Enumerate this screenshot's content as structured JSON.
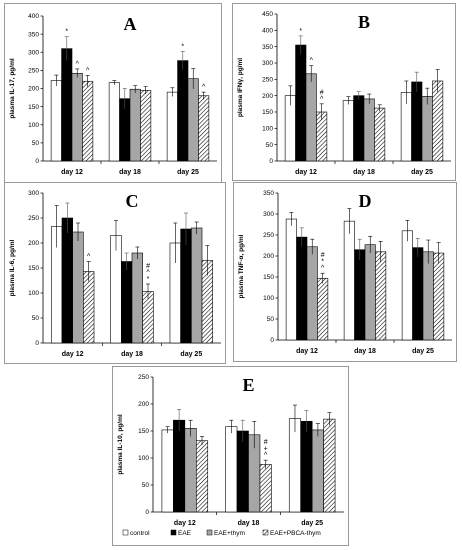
{
  "colors": {
    "control": "#ffffff",
    "EAE": "#000000",
    "EAE+thym": "#a6a6a6",
    "EAE+PBCA-thym": "hatched"
  },
  "legend": {
    "items": [
      {
        "label": "control",
        "key": "control"
      },
      {
        "label": "EAE",
        "key": "EAE"
      },
      {
        "label": "EAE+thym",
        "key": "EAE+thym"
      },
      {
        "label": "EAE+PBCA-thym",
        "key": "EAE+PBCA-thym"
      }
    ]
  },
  "chart_data": [
    {
      "id": "A",
      "panel_label": "A",
      "type": "bar",
      "ylabel": "plasma IL-17, pg/ml",
      "ylim": [
        0,
        400
      ],
      "yticks": [
        0,
        50,
        100,
        150,
        200,
        250,
        300,
        350,
        400
      ],
      "categories": [
        "day 12",
        "day 18",
        "day 25"
      ],
      "series": [
        {
          "name": "control",
          "values": [
            222,
            216,
            190
          ],
          "errors": [
            15,
            6,
            12
          ]
        },
        {
          "name": "EAE",
          "values": [
            310,
            172,
            277
          ],
          "errors": [
            33,
            28,
            25
          ]
        },
        {
          "name": "EAE+thym",
          "values": [
            242,
            198,
            227
          ],
          "errors": [
            12,
            10,
            28
          ]
        },
        {
          "name": "EAE+PBCA-thym",
          "values": [
            220,
            195,
            180
          ],
          "errors": [
            16,
            10,
            10
          ]
        }
      ],
      "annotations": [
        [
          "",
          "*",
          "^",
          "^"
        ],
        [
          "",
          "",
          "",
          ""
        ],
        [
          "",
          "*",
          "",
          "^"
        ]
      ]
    },
    {
      "id": "B",
      "panel_label": "B",
      "type": "bar",
      "ylabel": "plasma IFNγ, pg/ml",
      "ylim": [
        0,
        450
      ],
      "yticks": [
        0,
        50,
        100,
        150,
        200,
        250,
        300,
        350,
        400,
        450
      ],
      "categories": [
        "day 12",
        "day 18",
        "day 25"
      ],
      "series": [
        {
          "name": "control",
          "values": [
            200,
            185,
            210
          ],
          "errors": [
            30,
            12,
            35
          ]
        },
        {
          "name": "EAE",
          "values": [
            355,
            200,
            242
          ],
          "errors": [
            28,
            12,
            30
          ]
        },
        {
          "name": "EAE+thym",
          "values": [
            267,
            190,
            198
          ],
          "errors": [
            25,
            15,
            25
          ]
        },
        {
          "name": "EAE+PBCA-thym",
          "values": [
            150,
            162,
            245
          ],
          "errors": [
            25,
            10,
            35
          ]
        }
      ],
      "annotations": [
        [
          "",
          "*",
          "^",
          "# ^"
        ],
        [
          "",
          "",
          "",
          ""
        ],
        [
          "",
          "",
          "",
          ""
        ]
      ]
    },
    {
      "id": "C",
      "panel_label": "C",
      "type": "bar",
      "ylabel": "plasma IL-6, pg/ml",
      "ylim": [
        0,
        300
      ],
      "yticks": [
        0,
        50,
        100,
        150,
        200,
        250,
        300
      ],
      "categories": [
        "day 12",
        "day 18",
        "day 25"
      ],
      "series": [
        {
          "name": "control",
          "values": [
            233,
            215,
            200
          ],
          "errors": [
            42,
            30,
            40
          ]
        },
        {
          "name": "EAE",
          "values": [
            250,
            163,
            228
          ],
          "errors": [
            30,
            17,
            32
          ]
        },
        {
          "name": "EAE+thym",
          "values": [
            222,
            180,
            230
          ],
          "errors": [
            18,
            12,
            12
          ]
        },
        {
          "name": "EAE+PBCA-thym",
          "values": [
            143,
            103,
            165
          ],
          "errors": [
            20,
            15,
            30
          ]
        }
      ],
      "annotations": [
        [
          "",
          "",
          "",
          "^"
        ],
        [
          "",
          "",
          "",
          "# ^ *"
        ],
        [
          "",
          "",
          "",
          ""
        ]
      ]
    },
    {
      "id": "D",
      "panel_label": "D",
      "type": "bar",
      "ylabel": "plasma TNF-α, pg/ml",
      "ylim": [
        0,
        350
      ],
      "yticks": [
        0,
        50,
        100,
        150,
        200,
        250,
        300,
        350
      ],
      "categories": [
        "day 12",
        "day 18",
        "day 25"
      ],
      "series": [
        {
          "name": "control",
          "values": [
            288,
            283,
            260
          ],
          "errors": [
            16,
            30,
            25
          ]
        },
        {
          "name": "EAE",
          "values": [
            245,
            215,
            220
          ],
          "errors": [
            22,
            25,
            22
          ]
        },
        {
          "name": "EAE+thym",
          "values": [
            222,
            227,
            210
          ],
          "errors": [
            18,
            20,
            28
          ]
        },
        {
          "name": "EAE+PBCA-thym",
          "values": [
            147,
            210,
            207
          ],
          "errors": [
            12,
            25,
            25
          ]
        }
      ],
      "annotations": [
        [
          "",
          "",
          "",
          "# * ^"
        ],
        [
          "",
          "",
          "",
          ""
        ],
        [
          "",
          "",
          "",
          ""
        ]
      ]
    },
    {
      "id": "E",
      "panel_label": "E",
      "type": "bar",
      "ylabel": "plasma IL-10, pg/ml",
      "ylim": [
        0,
        250
      ],
      "yticks": [
        0,
        50,
        100,
        150,
        200,
        250
      ],
      "categories": [
        "day 12",
        "day 18",
        "day 25"
      ],
      "series": [
        {
          "name": "control",
          "values": [
            152,
            158,
            173
          ],
          "errors": [
            6,
            12,
            25
          ]
        },
        {
          "name": "EAE",
          "values": [
            170,
            150,
            168
          ],
          "errors": [
            20,
            20,
            20
          ]
        },
        {
          "name": "EAE+thym",
          "values": [
            155,
            143,
            152
          ],
          "errors": [
            15,
            25,
            12
          ]
        },
        {
          "name": "EAE+PBCA-thym",
          "values": [
            132,
            88,
            172
          ],
          "errors": [
            8,
            8,
            12
          ]
        }
      ],
      "annotations": [
        [
          "",
          "",
          "",
          ""
        ],
        [
          "",
          "",
          "",
          "# + ^"
        ],
        [
          "",
          "",
          "",
          ""
        ]
      ]
    }
  ]
}
